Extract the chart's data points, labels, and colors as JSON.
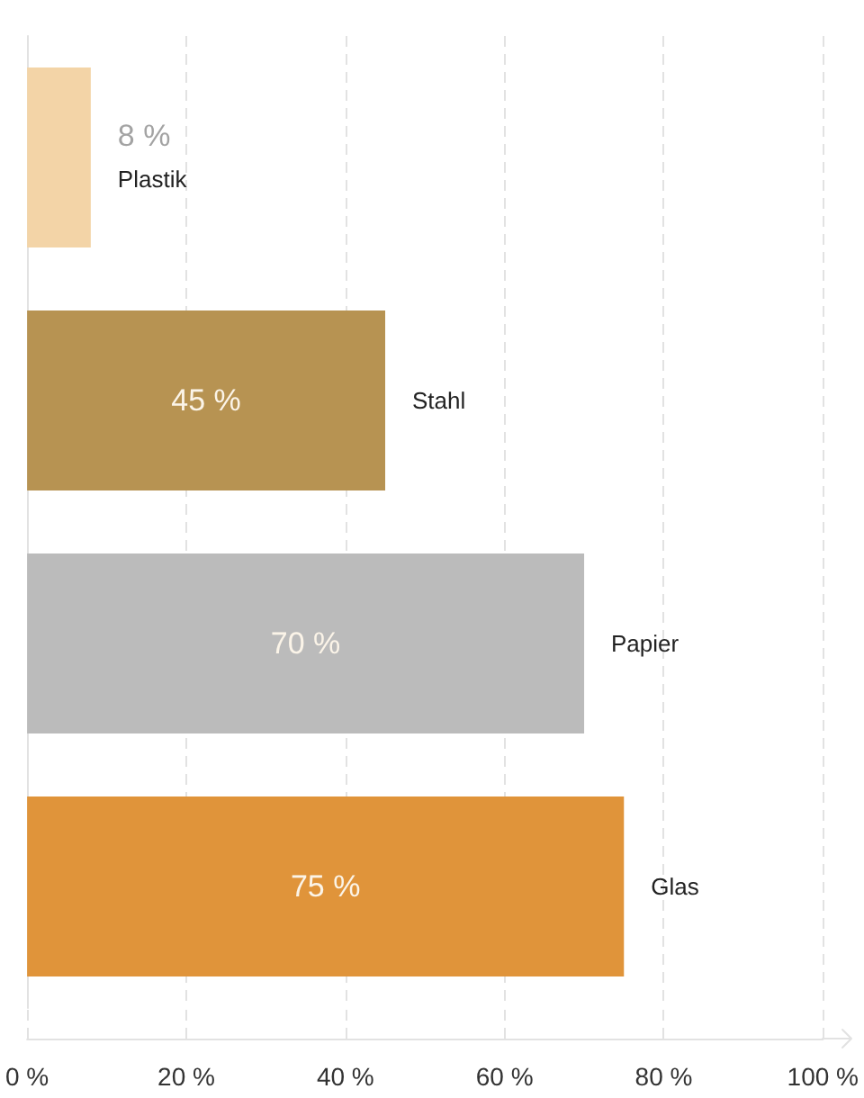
{
  "chart_data": {
    "type": "bar",
    "orientation": "horizontal",
    "categories": [
      "Plastik",
      "Stahl",
      "Papier",
      "Glas"
    ],
    "values": [
      8,
      45,
      70,
      75
    ],
    "colors": [
      "#f3d4a7",
      "#b79352",
      "#bbbbbb",
      "#e0943a"
    ],
    "value_labels": [
      "8 %",
      "45 %",
      "70 %",
      "75 %"
    ],
    "xlim": [
      0,
      100
    ],
    "xticks": [
      {
        "value": 0,
        "label": "0 %"
      },
      {
        "value": 20,
        "label": "20 %"
      },
      {
        "value": 40,
        "label": "40 %"
      },
      {
        "value": 60,
        "label": "60 %"
      },
      {
        "value": 80,
        "label": "80 %"
      },
      {
        "value": 100,
        "label": "100 %"
      }
    ],
    "grid": "x"
  }
}
